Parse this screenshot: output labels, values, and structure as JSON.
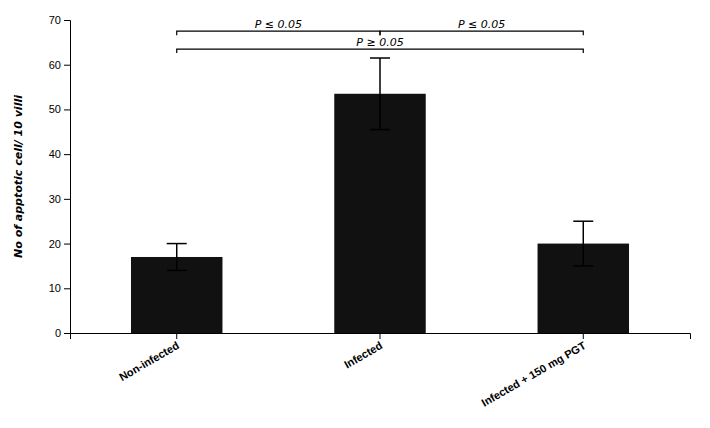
{
  "chart_data": {
    "type": "bar",
    "categories": [
      "Non-infected",
      "Infected",
      "Infected + 150 mg PGT"
    ],
    "values": [
      17,
      53.5,
      20
    ],
    "errors": [
      3.0,
      8.0,
      5.0
    ],
    "color": "#111111",
    "ylabel": "No of apptotic cell/ 10 villi",
    "ylim": [
      0,
      70
    ],
    "yticks": [
      0,
      10,
      20,
      30,
      40,
      50,
      60,
      70
    ],
    "grid": false,
    "annotations": [
      {
        "text": "P ≤ 0.05",
        "from": "Non-infected",
        "to": "Infected",
        "y": 67.5
      },
      {
        "text": "P ≤ 0.05",
        "from": "Infected",
        "to": "Infected + 150 mg PGT",
        "y": 67.5
      },
      {
        "text": "P ≥ 0.05",
        "from": "Non-infected",
        "to": "Infected + 150 mg PGT",
        "y": 63.5
      }
    ]
  }
}
